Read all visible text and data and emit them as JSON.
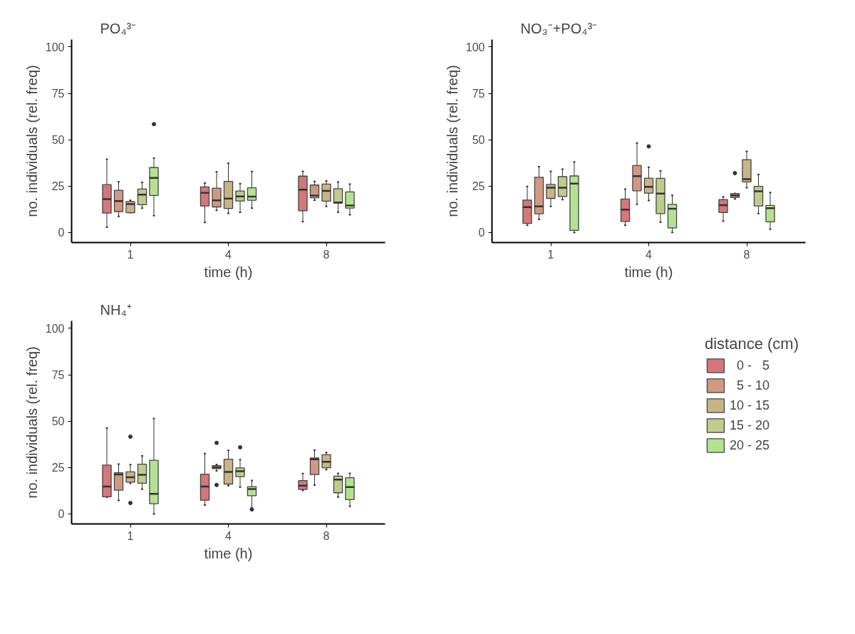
{
  "chart_data": [
    {
      "type": "box",
      "title": "PO₄³⁻",
      "xlabel": "time (h)",
      "ylabel": "no. individuals (rel. freq)",
      "categories": [
        "1",
        "4",
        "8"
      ],
      "ylim": [
        -5.4,
        104
      ],
      "yticks": [
        0,
        25,
        50,
        75,
        100
      ],
      "grid": false,
      "legend": false,
      "series": [
        {
          "color": "#d4777b",
          "boxes": [
            {
              "low": 2.9,
              "q1": 10.5,
              "median": 18,
              "q3": 25.8,
              "high": 39.5
            },
            {
              "low": 5.4,
              "q1": 14.3,
              "median": 21.4,
              "q3": 24.6,
              "high": 26.7
            },
            {
              "low": 5.8,
              "q1": 11.7,
              "median": 23.1,
              "q3": 30.4,
              "high": 33
            }
          ]
        },
        {
          "color": "#cf9a80",
          "boxes": [
            {
              "low": 8.7,
              "q1": 11.3,
              "median": 17,
              "q3": 22.8,
              "high": 27.3
            },
            {
              "low": 12,
              "q1": 13.8,
              "median": 17.3,
              "q3": 23.9,
              "high": 32.7
            },
            {
              "low": 17.4,
              "q1": 18.7,
              "median": 19.9,
              "q3": 25.6,
              "high": 27.5
            }
          ]
        },
        {
          "color": "#c8b586",
          "boxes": [
            {
              "low": 10.7,
              "q1": 10.7,
              "median": 15.3,
              "q3": 16.7,
              "high": 17.3
            },
            {
              "low": 10.3,
              "q1": 13,
              "median": 18.3,
              "q3": 27.6,
              "high": 37.3
            },
            {
              "low": 14.1,
              "q1": 16.9,
              "median": 22.4,
              "q3": 26.1,
              "high": 27.8
            }
          ]
        },
        {
          "color": "#bfcc8c",
          "boxes": [
            {
              "low": 13.1,
              "q1": 15,
              "median": 20.4,
              "q3": 23.4,
              "high": 27
            },
            {
              "low": 10.9,
              "q1": 17,
              "median": 19.5,
              "q3": 22.4,
              "high": 26.4
            },
            {
              "low": 10.9,
              "q1": 15.9,
              "median": 16.2,
              "q3": 23.6,
              "high": 27.2
            }
          ]
        },
        {
          "color": "#b3e391",
          "boxes": [
            {
              "low": 9.1,
              "q1": 20,
              "median": 29.4,
              "q3": 35,
              "high": 40.1,
              "outliers": [
                58.4
              ]
            },
            {
              "low": 13.1,
              "q1": 17.4,
              "median": 19.4,
              "q3": 24.1,
              "high": 32.9
            },
            {
              "low": 9.6,
              "q1": 13.2,
              "median": 14.6,
              "q3": 21.9,
              "high": 26.1
            }
          ]
        }
      ]
    },
    {
      "type": "box",
      "title": "NO₃⁻+PO₄³⁻",
      "xlabel": "time (h)",
      "ylabel": "no. individuals (rel. freq)",
      "categories": [
        "1",
        "4",
        "8"
      ],
      "ylim": [
        -5.4,
        104
      ],
      "yticks": [
        0,
        25,
        50,
        75,
        100
      ],
      "grid": false,
      "legend": false,
      "series": [
        {
          "color": "#d4777b",
          "boxes": [
            {
              "low": 3.9,
              "q1": 4.9,
              "median": 13.7,
              "q3": 17.5,
              "high": 24.8
            },
            {
              "low": 3.9,
              "q1": 6,
              "median": 12.4,
              "q3": 18.1,
              "high": 23.4
            },
            {
              "low": 6.1,
              "q1": 10.8,
              "median": 14.8,
              "q3": 17.8,
              "high": 19.3
            }
          ]
        },
        {
          "color": "#cf9a80",
          "boxes": [
            {
              "low": 7.1,
              "q1": 10.1,
              "median": 14.1,
              "q3": 29.8,
              "high": 35.5
            },
            {
              "low": 15.2,
              "q1": 22.5,
              "median": 30.4,
              "q3": 36.1,
              "high": 48.2
            },
            {
              "low": 18.1,
              "q1": 18.9,
              "median": 20,
              "q3": 21,
              "high": 21.1,
              "outliers": [
                32
              ]
            }
          ]
        },
        {
          "color": "#c8b586",
          "boxes": [
            {
              "low": 14.1,
              "q1": 18.4,
              "median": 24.2,
              "q3": 25.9,
              "high": 33
            },
            {
              "low": 17.2,
              "q1": 21.2,
              "median": 24.6,
              "q3": 29.3,
              "high": 35.2,
              "outliers": [
                46.4
              ]
            },
            {
              "low": 24.2,
              "q1": 27.3,
              "median": 28.8,
              "q3": 39.3,
              "high": 43.7
            }
          ]
        },
        {
          "color": "#bfcc8c",
          "boxes": [
            {
              "low": 17.7,
              "q1": 19.4,
              "median": 24.2,
              "q3": 30.1,
              "high": 34.1
            },
            {
              "low": 5.5,
              "q1": 10.2,
              "median": 21,
              "q3": 29.2,
              "high": 33.3
            },
            {
              "low": 10.2,
              "q1": 14.3,
              "median": 22.2,
              "q3": 24.9,
              "high": 31.3
            }
          ]
        },
        {
          "color": "#b3e391",
          "boxes": [
            {
              "low": 0,
              "q1": 1.2,
              "median": 26.4,
              "q3": 30.5,
              "high": 38.1
            },
            {
              "low": 0.1,
              "q1": 2.5,
              "median": 12.8,
              "q3": 15.2,
              "high": 20
            },
            {
              "low": 1.8,
              "q1": 5.8,
              "median": 13.1,
              "q3": 14.6,
              "high": 21.6
            }
          ]
        }
      ]
    },
    {
      "type": "box",
      "title": "NH₄⁺",
      "xlabel": "time (h)",
      "ylabel": "no. individuals (rel. freq)",
      "categories": [
        "1",
        "4",
        "8"
      ],
      "ylim": [
        -5.4,
        104
      ],
      "yticks": [
        0,
        25,
        50,
        75,
        100
      ],
      "grid": false,
      "legend": "right",
      "legend_title": "distance (cm)",
      "series": [
        {
          "name": "  0 -   5",
          "color": "#d4777b",
          "boxes": [
            {
              "low": 9,
              "q1": 9.2,
              "median": 14.8,
              "q3": 26.3,
              "high": 46.2
            },
            {
              "low": 4.8,
              "q1": 7.4,
              "median": 14.8,
              "q3": 21.4,
              "high": 32.5
            },
            {
              "low": 12.6,
              "q1": 13.2,
              "median": 15.2,
              "q3": 18,
              "high": 21.8
            }
          ]
        },
        {
          "name": "  5 - 10",
          "color": "#cf9a80",
          "boxes": [
            {
              "low": 7.3,
              "q1": 12.8,
              "median": 21.3,
              "q3": 22.2,
              "high": 26.8
            },
            {
              "low": 23.2,
              "q1": 24.4,
              "median": 25.1,
              "q3": 26,
              "high": 26.7,
              "outliers": [
                38.3,
                15.6
              ]
            },
            {
              "low": 15.5,
              "q1": 21.2,
              "median": 29.4,
              "q3": 30.1,
              "high": 34.3
            }
          ]
        },
        {
          "name": "10 - 15",
          "color": "#c8b586",
          "boxes": [
            {
              "low": 16.5,
              "q1": 17.1,
              "median": 19.7,
              "q3": 22.7,
              "high": 26.6,
              "outliers": [
                41.6,
                5.9
              ]
            },
            {
              "low": 15.2,
              "q1": 16.1,
              "median": 22.6,
              "q3": 29.5,
              "high": 34.2
            },
            {
              "low": 23.9,
              "q1": 24.9,
              "median": 28.1,
              "q3": 31.9,
              "high": 33.1
            }
          ]
        },
        {
          "name": "15 - 20",
          "color": "#bfcc8c",
          "boxes": [
            {
              "low": 13.3,
              "q1": 16.5,
              "median": 21.1,
              "q3": 26.8,
              "high": 31.3
            },
            {
              "low": 14.5,
              "q1": 20.1,
              "median": 23,
              "q3": 24.8,
              "high": 29.2,
              "outliers": [
                35.9
              ]
            },
            {
              "low": 9.1,
              "q1": 11.4,
              "median": 18.5,
              "q3": 20.4,
              "high": 21.9
            }
          ]
        },
        {
          "name": "20 - 25",
          "color": "#b3e391",
          "boxes": [
            {
              "low": 0,
              "q1": 5.5,
              "median": 10.8,
              "q3": 28.9,
              "high": 51.4
            },
            {
              "low": 3.2,
              "q1": 9.8,
              "median": 13.4,
              "q3": 14.7,
              "high": 18,
              "outliers": [
                2.4
              ]
            },
            {
              "low": 4.1,
              "q1": 7.7,
              "median": 14.5,
              "q3": 19.5,
              "high": 21.9
            }
          ]
        }
      ]
    }
  ]
}
